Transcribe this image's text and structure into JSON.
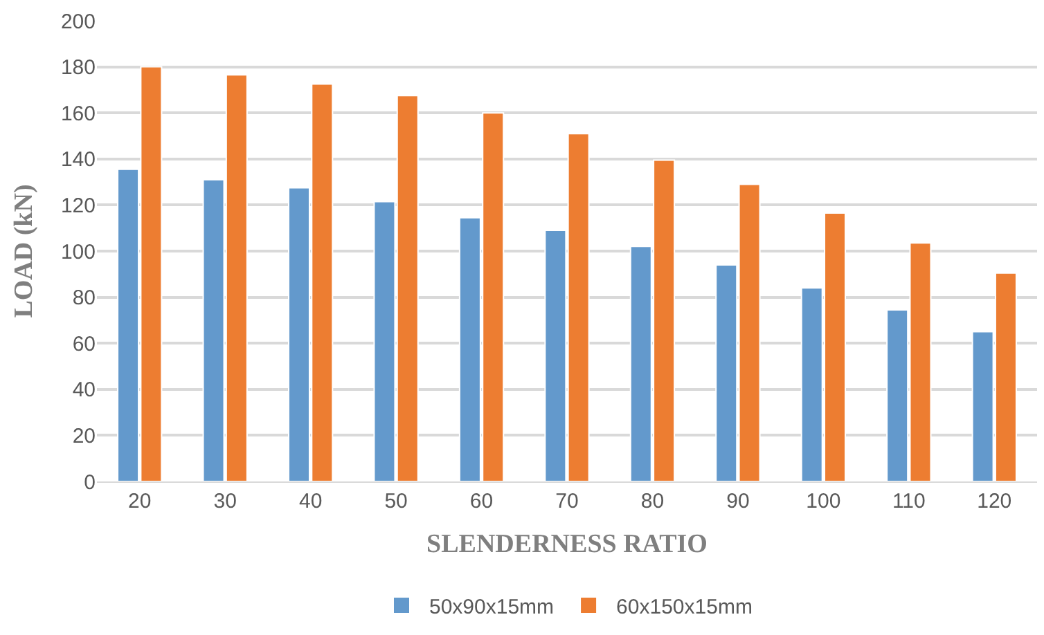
{
  "chart_data": {
    "type": "bar",
    "xlabel": "SLENDERNESS RATIO",
    "ylabel": "LOAD (kN)",
    "categories": [
      "20",
      "30",
      "40",
      "50",
      "60",
      "70",
      "80",
      "90",
      "100",
      "110",
      "120"
    ],
    "series": [
      {
        "name": "50x90x15mm",
        "color": "#6399cc",
        "values": [
          135.5,
          131,
          127.5,
          121.5,
          114.5,
          109,
          102,
          94,
          84,
          74.5,
          65
        ]
      },
      {
        "name": "60x150x15mm",
        "color": "#ed7d31",
        "values": [
          180,
          176.5,
          172.5,
          167.5,
          160,
          151,
          139.5,
          129,
          116.5,
          103.5,
          90.5
        ]
      }
    ],
    "ylim": [
      0,
      200
    ],
    "yticks": [
      0,
      20,
      40,
      60,
      80,
      100,
      120,
      140,
      160,
      180,
      200
    ],
    "grid": "y",
    "legend": "bottom"
  }
}
